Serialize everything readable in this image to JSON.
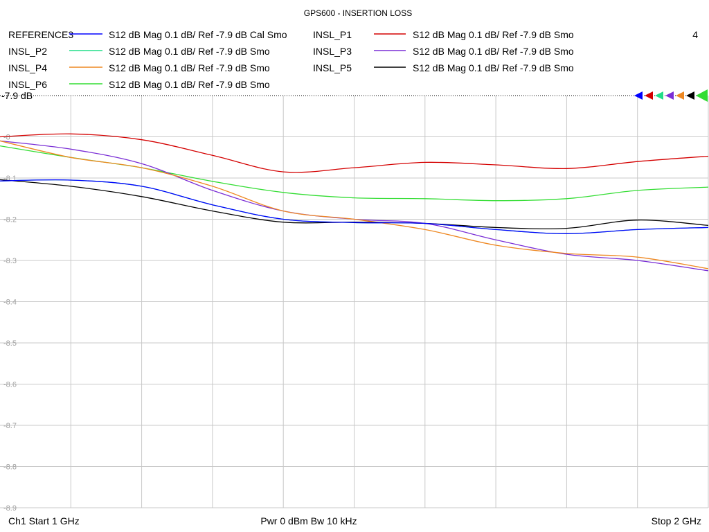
{
  "window": {
    "title": "GPS600 - INSERTION LOSS",
    "channel_number": "4"
  },
  "footer": {
    "start": "Ch1  Start  1 GHz",
    "power_bw": "Pwr  0 dBm  Bw  10 kHz",
    "stop": "Stop  2 GHz"
  },
  "legend": [
    {
      "trace": "REFERENCE3",
      "desc": "S12  dB Mag  0.1 dB/ Ref -7.9 dB  Cal Smo"
    },
    {
      "trace": "INSL_P1",
      "desc": "S12  dB Mag  0.1 dB/ Ref -7.9 dB  Smo"
    },
    {
      "trace": "INSL_P2",
      "desc": "S12  dB Mag  0.1 dB/ Ref -7.9 dB  Smo"
    },
    {
      "trace": "INSL_P3",
      "desc": "S12  dB Mag  0.1 dB/ Ref -7.9 dB  Smo"
    },
    {
      "trace": "INSL_P4",
      "desc": "S12  dB Mag  0.1 dB/ Ref -7.9 dB  Smo"
    },
    {
      "trace": "INSL_P5",
      "desc": "S12  dB Mag  0.1 dB/ Ref -7.9 dB  Smo"
    },
    {
      "trace": "INSL_P6",
      "desc": "S12  dB Mag  0.1 dB/ Ref -7.9 dB  Smo"
    }
  ],
  "colors": {
    "grid": "#c8c8c8",
    "REFERENCE3": "#0000ff",
    "INSL_P1": "#d40000",
    "INSL_P2": "#22dd88",
    "INSL_P3": "#7a2ed6",
    "INSL_P4": "#ee8822",
    "INSL_P5": "#000000",
    "INSL_P6": "#33dd33"
  },
  "chart_data": {
    "type": "line",
    "title": "GPS600 - INSERTION LOSS",
    "ref_label": "-7.9 dB",
    "xlim": [
      1.0,
      2.0
    ],
    "ylim": [
      -8.9,
      -7.9
    ],
    "y_ticks": [
      "-7.9",
      "-8",
      "-8.1",
      "-8.2",
      "-8.3",
      "-8.4",
      "-8.5",
      "-8.6",
      "-8.7",
      "-8.8",
      "-8.9"
    ],
    "x": [
      1.0,
      1.1,
      1.2,
      1.3,
      1.4,
      1.5,
      1.6,
      1.7,
      1.8,
      1.9,
      2.0
    ],
    "series": [
      {
        "name": "INSL_P1",
        "values": [
          -8.0,
          -7.993,
          -8.007,
          -8.045,
          -8.085,
          -8.075,
          -8.062,
          -8.068,
          -8.077,
          -8.06,
          -8.047
        ]
      },
      {
        "name": "INSL_P6",
        "values": [
          -8.022,
          -8.05,
          -8.075,
          -8.108,
          -8.135,
          -8.148,
          -8.15,
          -8.155,
          -8.15,
          -8.13,
          -8.122
        ]
      },
      {
        "name": "INSL_P2",
        "values": [
          -8.107,
          -8.105,
          -8.12,
          -8.165,
          -8.2,
          -8.208,
          -8.21,
          -8.225,
          -8.235,
          -8.225,
          -8.22
        ]
      },
      {
        "name": "INSL_P3",
        "values": [
          -8.01,
          -8.03,
          -8.065,
          -8.13,
          -8.18,
          -8.2,
          -8.21,
          -8.25,
          -8.285,
          -8.3,
          -8.325
        ]
      },
      {
        "name": "INSL_P4",
        "values": [
          -8.01,
          -8.05,
          -8.075,
          -8.12,
          -8.18,
          -8.2,
          -8.225,
          -8.263,
          -8.283,
          -8.292,
          -8.32
        ]
      },
      {
        "name": "INSL_P5",
        "values": [
          -8.104,
          -8.12,
          -8.145,
          -8.18,
          -8.207,
          -8.207,
          -8.21,
          -8.22,
          -8.222,
          -8.202,
          -8.215
        ]
      },
      {
        "name": "REFERENCE3",
        "values": [
          -8.107,
          -8.105,
          -8.12,
          -8.165,
          -8.2,
          -8.208,
          -8.21,
          -8.225,
          -8.235,
          -8.225,
          -8.22
        ]
      }
    ]
  }
}
